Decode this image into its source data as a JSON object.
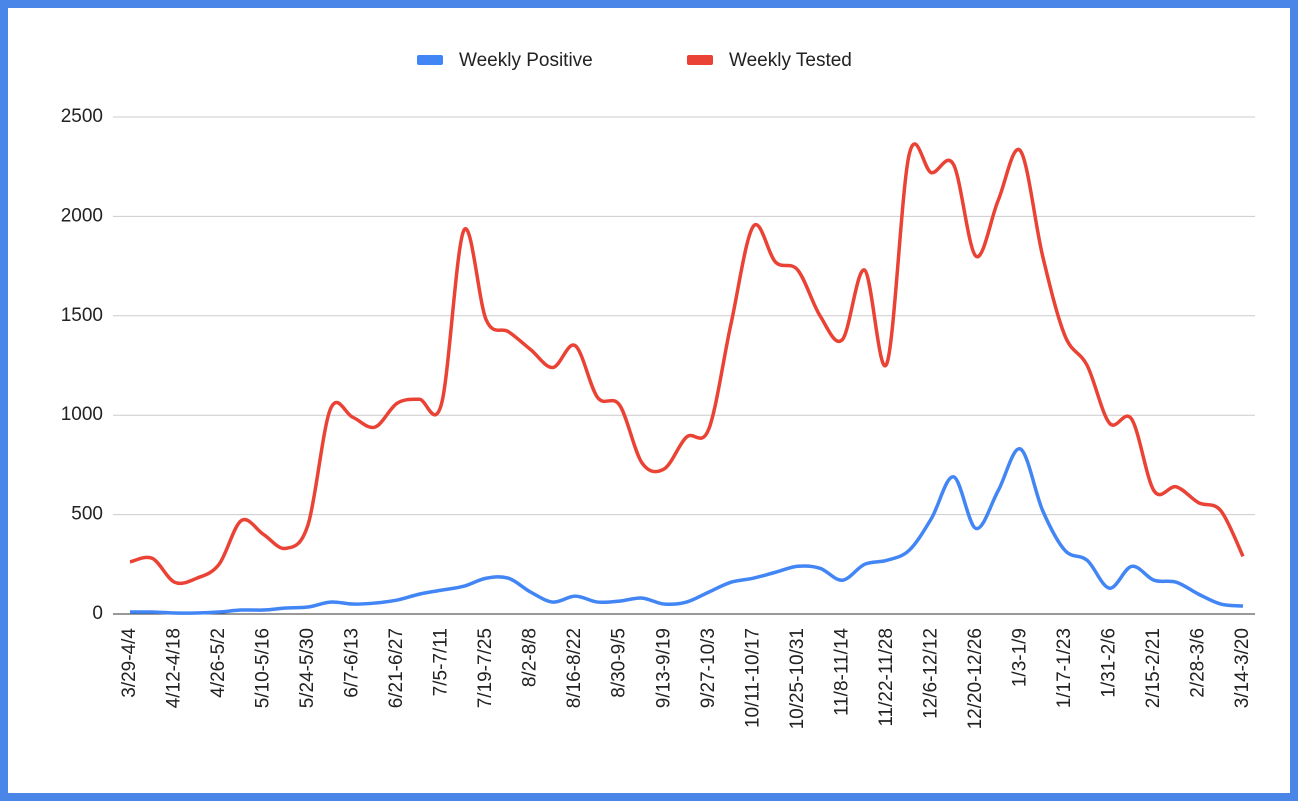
{
  "chart_data": {
    "type": "line",
    "categories": [
      "3/29-4/4",
      null,
      "4/12-4/18",
      null,
      "4/26-5/2",
      null,
      "5/10-5/16",
      null,
      "5/24-5/30",
      null,
      "6/7-6/13",
      null,
      "6/21-6/27",
      null,
      "7/5-7/11",
      null,
      "7/19-7/25",
      null,
      "8/2-8/8",
      null,
      "8/16-8/22",
      null,
      "8/30-9/5",
      null,
      "9/13-9/19",
      null,
      "9/27-10/3",
      null,
      "10/11-10/17",
      null,
      "10/25-10/31",
      null,
      "11/8-11/14",
      null,
      "11/22-11/28",
      null,
      "12/6-12/12",
      null,
      "12/20-12/26",
      null,
      "1/3-1/9",
      null,
      "1/17-1/23",
      null,
      "1/31-2/6",
      null,
      "2/15-2/21",
      null,
      "2/28-3/6",
      null,
      "3/14-3/20"
    ],
    "series": [
      {
        "name": "Weekly Positive",
        "color": "#4285f4",
        "values": [
          10,
          10,
          5,
          5,
          10,
          20,
          20,
          30,
          35,
          60,
          50,
          55,
          70,
          100,
          120,
          140,
          180,
          180,
          110,
          60,
          90,
          60,
          65,
          80,
          50,
          60,
          110,
          160,
          180,
          210,
          240,
          230,
          170,
          250,
          270,
          320,
          480,
          690,
          430,
          620,
          830,
          520,
          320,
          270,
          130,
          240,
          170,
          160,
          100,
          50,
          40
        ]
      },
      {
        "name": "Weekly Tested",
        "color": "#ea4335",
        "values": [
          262,
          280,
          160,
          180,
          250,
          470,
          400,
          330,
          450,
          1030,
          990,
          940,
          1060,
          1080,
          1060,
          1930,
          1480,
          1420,
          1330,
          1240,
          1350,
          1090,
          1050,
          760,
          730,
          890,
          930,
          1460,
          1950,
          1770,
          1730,
          1500,
          1380,
          1730,
          1260,
          2310,
          2220,
          2260,
          1800,
          2080,
          2330,
          1800,
          1400,
          1250,
          960,
          980,
          620,
          640,
          560,
          520,
          290
        ]
      }
    ],
    "ylim": [
      0,
      2500
    ],
    "yticks": [
      0,
      500,
      1000,
      1500,
      2000,
      2500
    ],
    "grid": true,
    "legend": "top"
  }
}
